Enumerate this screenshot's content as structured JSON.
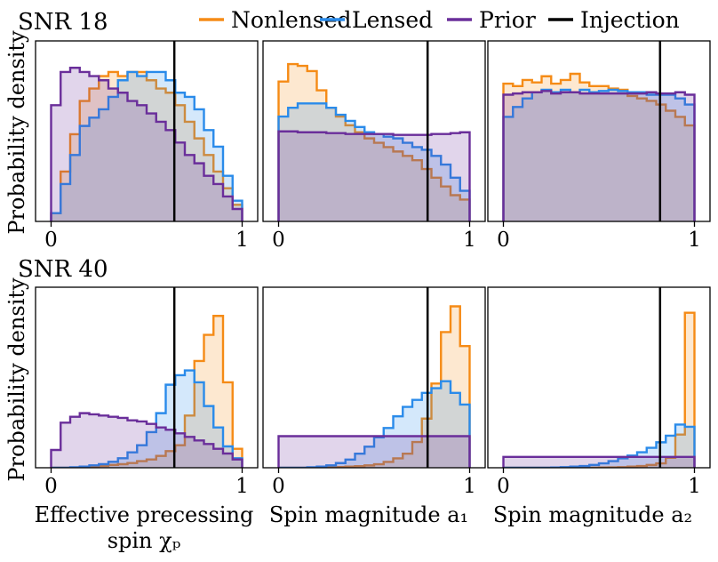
{
  "legend": {
    "placement": "top",
    "items": [
      {
        "label": "Nonlensed",
        "color": "#f58b16"
      },
      {
        "label": "Lensed",
        "color": "#2a8bea"
      },
      {
        "label": "Prior",
        "color": "#6a2e9a"
      },
      {
        "label": "Injection",
        "color": "#000000"
      }
    ]
  },
  "row_titles": [
    "SNR 18",
    "SNR 40"
  ],
  "ylabel": "Probability density",
  "xlabels": [
    [
      "Effective precessing",
      "spin χₚ"
    ],
    [
      "Spin magnitude a₁"
    ],
    [
      "Spin magnitude a₂"
    ]
  ],
  "chart_data": [
    {
      "type": "area",
      "row": 0,
      "col": 0,
      "xlim": [
        0,
        1
      ],
      "ylim": [
        0,
        2.0
      ],
      "x_ticks": [
        "0",
        "1"
      ],
      "injection": 0.645,
      "grid": false,
      "series": [
        {
          "name": "Nonlensed",
          "values": [
            0.1,
            0.6,
            1.05,
            1.45,
            1.6,
            1.75,
            1.8,
            1.75,
            1.8,
            1.8,
            1.7,
            1.6,
            1.55,
            1.4,
            1.2,
            1.0,
            0.8,
            0.6,
            0.4,
            0.2
          ]
        },
        {
          "name": "Lensed",
          "values": [
            0.1,
            0.45,
            0.8,
            1.15,
            1.25,
            1.35,
            1.5,
            1.7,
            1.8,
            1.75,
            1.8,
            1.8,
            1.7,
            1.55,
            1.5,
            1.35,
            1.1,
            0.9,
            0.55,
            0.25
          ]
        },
        {
          "name": "Prior",
          "values": [
            1.4,
            1.8,
            1.85,
            1.8,
            1.75,
            1.7,
            1.6,
            1.55,
            1.45,
            1.4,
            1.3,
            1.2,
            1.1,
            0.95,
            0.8,
            0.7,
            0.55,
            0.45,
            0.3,
            0.15
          ]
        }
      ]
    },
    {
      "type": "area",
      "row": 0,
      "col": 1,
      "xlim": [
        0,
        1
      ],
      "ylim": [
        0,
        1.9
      ],
      "x_ticks": [
        "0",
        "1"
      ],
      "injection": 0.78,
      "grid": false,
      "series": [
        {
          "name": "Nonlensed",
          "values": [
            1.6,
            1.8,
            1.78,
            1.72,
            1.5,
            1.3,
            1.2,
            1.1,
            1.02,
            0.95,
            0.9,
            0.85,
            0.8,
            0.75,
            0.7,
            0.6,
            0.5,
            0.4,
            0.3,
            0.25
          ]
        },
        {
          "name": "Lensed",
          "values": [
            1.2,
            1.3,
            1.35,
            1.35,
            1.35,
            1.3,
            1.22,
            1.15,
            1.08,
            1.02,
            1.0,
            0.97,
            0.95,
            0.9,
            0.85,
            0.82,
            0.75,
            0.65,
            0.5,
            0.35
          ]
        },
        {
          "name": "Prior",
          "values": [
            1.03,
            1.03,
            1.02,
            1.02,
            1.02,
            1.01,
            1.01,
            1.0,
            1.0,
            1.0,
            1.0,
            1.0,
            0.99,
            0.99,
            0.99,
            0.99,
            1.0,
            1.0,
            1.01,
            1.02
          ]
        }
      ]
    },
    {
      "type": "area",
      "row": 0,
      "col": 2,
      "xlim": [
        0,
        1
      ],
      "ylim": [
        0,
        1.35
      ],
      "x_ticks": [
        "0",
        "1"
      ],
      "injection": 0.82,
      "grid": false,
      "series": [
        {
          "name": "Nonlensed",
          "values": [
            1.12,
            1.1,
            1.15,
            1.13,
            1.18,
            1.12,
            1.15,
            1.2,
            1.13,
            1.1,
            1.1,
            1.08,
            1.07,
            1.02,
            1.0,
            0.98,
            0.95,
            0.9,
            0.85,
            0.78
          ]
        },
        {
          "name": "Lensed",
          "values": [
            0.85,
            0.93,
            1.0,
            1.05,
            1.07,
            1.05,
            1.07,
            1.05,
            1.07,
            1.05,
            1.06,
            1.07,
            1.06,
            1.05,
            1.05,
            1.03,
            1.03,
            1.03,
            1.0,
            0.95
          ]
        },
        {
          "name": "Prior",
          "values": [
            1.03,
            1.04,
            1.05,
            1.05,
            1.06,
            1.04,
            1.05,
            1.05,
            1.04,
            1.04,
            1.04,
            1.04,
            1.04,
            1.04,
            1.04,
            1.05,
            1.04,
            1.04,
            1.05,
            1.03
          ]
        }
      ]
    },
    {
      "type": "area",
      "row": 1,
      "col": 0,
      "xlim": [
        0,
        1
      ],
      "ylim": [
        0,
        7.0
      ],
      "x_ticks": [
        "0",
        "1"
      ],
      "injection": 0.645,
      "grid": false,
      "series": [
        {
          "name": "Nonlensed",
          "values": [
            0,
            0,
            0,
            0.02,
            0.05,
            0.08,
            0.12,
            0.15,
            0.2,
            0.28,
            0.35,
            0.5,
            0.7,
            0.95,
            2.2,
            4.5,
            5.6,
            6.4,
            3.6,
            0.8
          ]
        },
        {
          "name": "Lensed",
          "values": [
            0,
            0,
            0.02,
            0.05,
            0.1,
            0.15,
            0.25,
            0.4,
            0.65,
            0.95,
            1.5,
            2.3,
            3.5,
            3.9,
            4.1,
            3.6,
            2.6,
            1.7,
            0.9,
            0.4
          ]
        },
        {
          "name": "Prior",
          "values": [
            0.75,
            1.9,
            2.15,
            2.3,
            2.25,
            2.2,
            2.15,
            2.1,
            2.0,
            1.95,
            1.85,
            1.7,
            1.6,
            1.45,
            1.3,
            1.15,
            1.0,
            0.8,
            0.6,
            0.35
          ]
        }
      ]
    },
    {
      "type": "area",
      "row": 1,
      "col": 1,
      "xlim": [
        0,
        1
      ],
      "ylim": [
        0,
        7.1
      ],
      "x_ticks": [
        "0",
        "1"
      ],
      "injection": 0.78,
      "grid": false,
      "series": [
        {
          "name": "Nonlensed",
          "values": [
            0,
            0,
            0,
            0,
            0,
            0.02,
            0.03,
            0.05,
            0.07,
            0.1,
            0.15,
            0.25,
            0.4,
            0.6,
            1.1,
            2.1,
            3.6,
            5.8,
            6.9,
            5.2
          ]
        },
        {
          "name": "Lensed",
          "values": [
            0,
            0,
            0,
            0.02,
            0.05,
            0.1,
            0.2,
            0.35,
            0.6,
            0.9,
            1.3,
            1.7,
            2.2,
            2.6,
            2.9,
            3.2,
            3.4,
            3.7,
            3.2,
            2.7
          ]
        },
        {
          "name": "Prior",
          "values": [
            1.35,
            1.35,
            1.35,
            1.35,
            1.35,
            1.35,
            1.35,
            1.35,
            1.35,
            1.35,
            1.35,
            1.35,
            1.35,
            1.35,
            1.35,
            1.35,
            1.35,
            1.35,
            1.35,
            1.35
          ]
        }
      ]
    },
    {
      "type": "area",
      "row": 1,
      "col": 2,
      "xlim": [
        0,
        1
      ],
      "ylim": [
        0,
        15
      ],
      "x_ticks": [
        "0",
        "1"
      ],
      "injection": 0.82,
      "grid": false,
      "series": [
        {
          "name": "Nonlensed",
          "values": [
            0,
            0,
            0,
            0,
            0,
            0,
            0,
            0,
            0,
            0,
            0.02,
            0.03,
            0.05,
            0.1,
            0.15,
            0.25,
            0.4,
            0.9,
            3.0,
            14.0
          ]
        },
        {
          "name": "Lensed",
          "values": [
            0,
            0,
            0,
            0,
            0,
            0.02,
            0.05,
            0.1,
            0.15,
            0.25,
            0.4,
            0.6,
            0.85,
            1.1,
            1.4,
            1.8,
            2.3,
            2.9,
            3.9,
            3.7
          ]
        },
        {
          "name": "Prior",
          "values": [
            0.98,
            0.98,
            0.98,
            0.98,
            0.98,
            0.98,
            0.98,
            0.98,
            0.98,
            0.98,
            0.98,
            0.98,
            0.98,
            0.98,
            0.98,
            0.98,
            0.98,
            0.98,
            0.98,
            0.98
          ]
        }
      ]
    }
  ]
}
